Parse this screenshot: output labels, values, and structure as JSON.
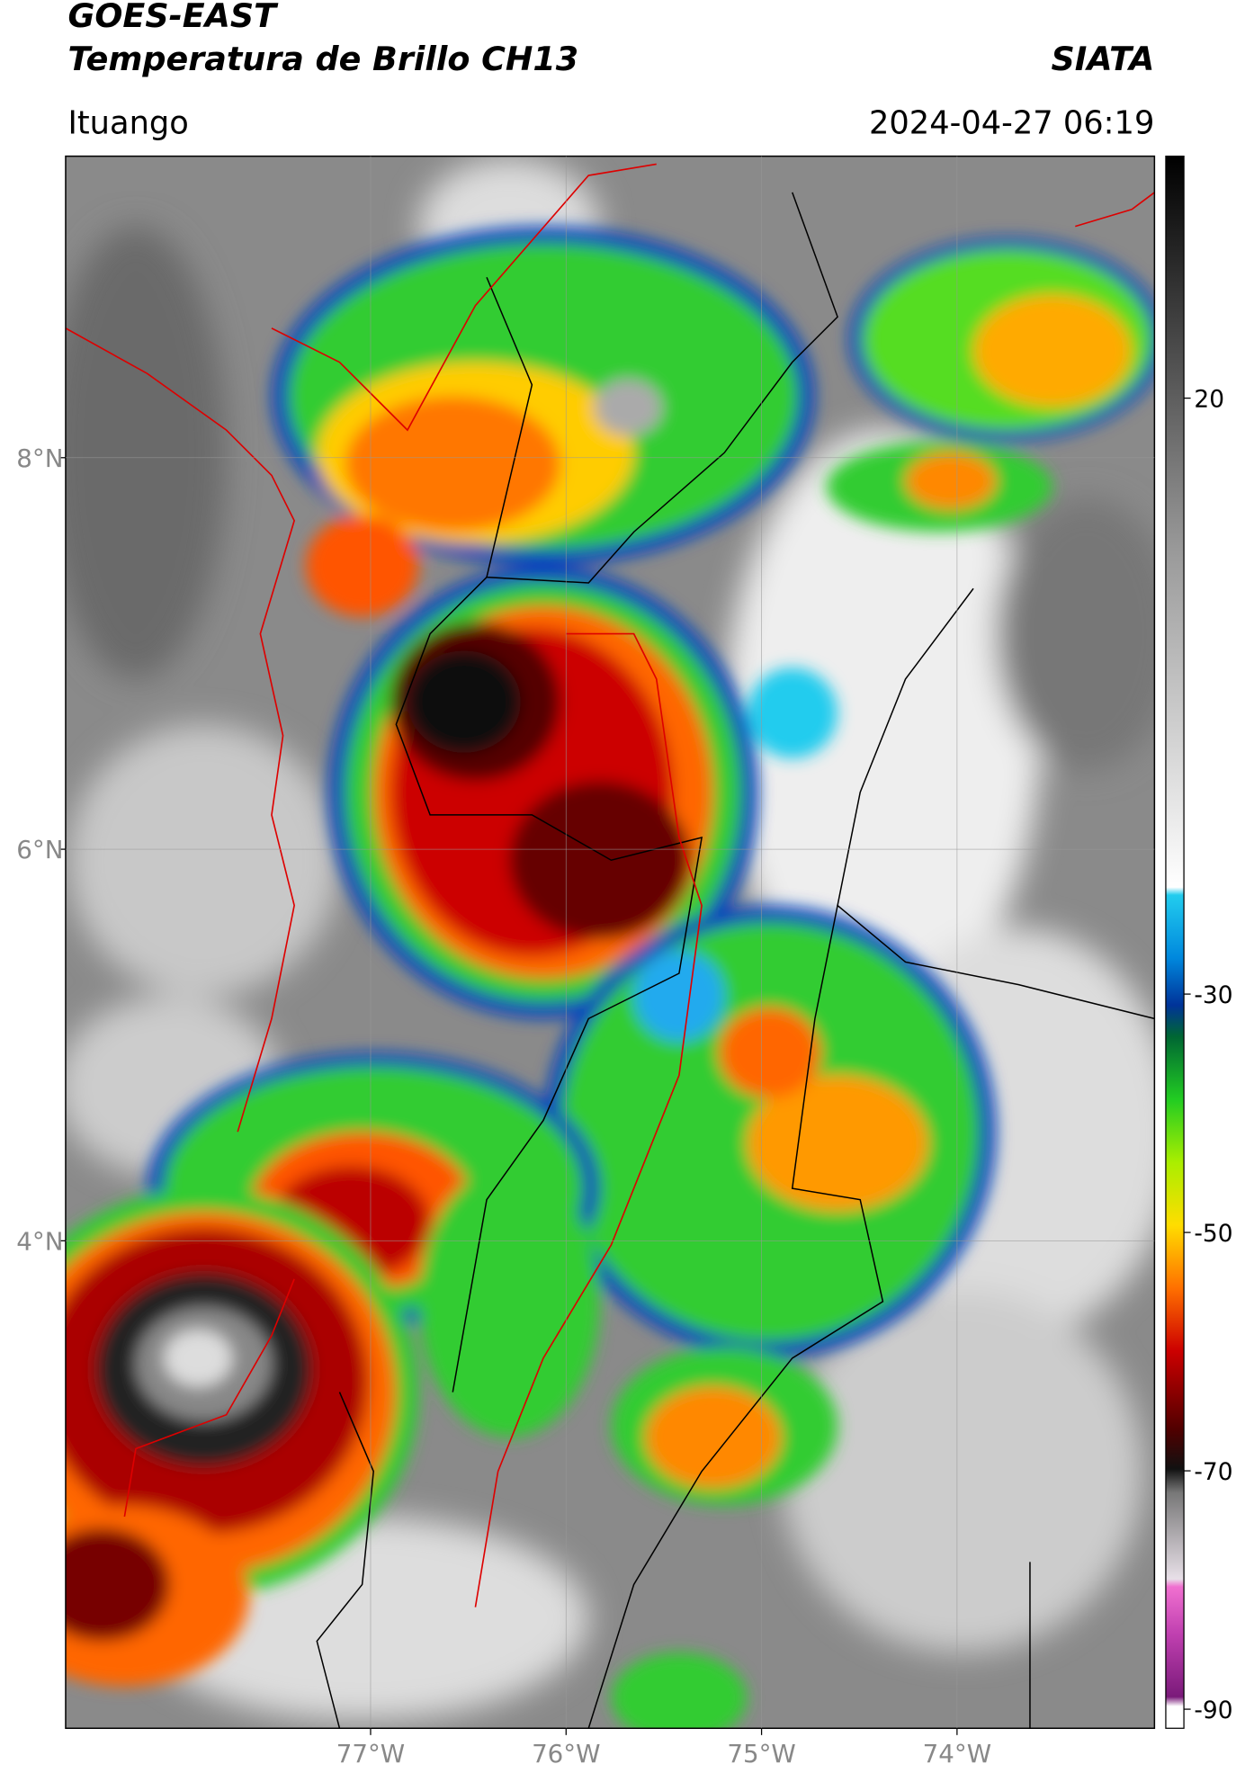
{
  "header": {
    "line1": "GOES-EAST",
    "line2": "Temperatura de Brillo CH13",
    "org": "SIATA",
    "place": "Ituango",
    "datetime": "2024-04-27 06:19"
  },
  "map": {
    "lon_lim": [
      -78.56,
      -72.99
    ],
    "lat_lim": [
      1.51,
      9.54
    ],
    "lon_ticks": [
      {
        "value": -77,
        "label": "77°W"
      },
      {
        "value": -76,
        "label": "76°W"
      },
      {
        "value": -75,
        "label": "75°W"
      },
      {
        "value": -74,
        "label": "74°W"
      }
    ],
    "lat_ticks": [
      {
        "value": 8,
        "label": "8°N"
      },
      {
        "value": 6,
        "label": "6°N"
      },
      {
        "value": 4,
        "label": "4°N"
      }
    ]
  },
  "colorbar": {
    "lim": [
      -91.6,
      40.3
    ],
    "ticks": [
      20,
      -30,
      -50,
      -70,
      -90
    ]
  }
}
